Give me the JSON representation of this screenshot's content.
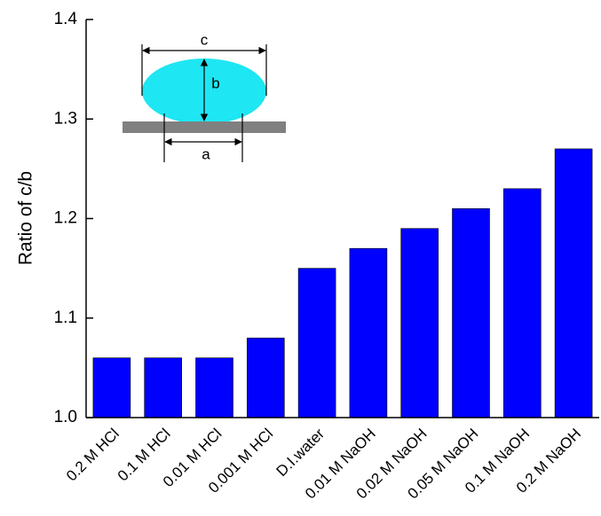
{
  "chart_data": {
    "type": "bar",
    "y_label": "Ratio of c/b",
    "categories": [
      "0.2 M HCl",
      "0.1 M HCl",
      "0.01 M HCl",
      "0.001 M HCl",
      "D.I.water",
      "0.01 M NaOH",
      "0.02 M NaOH",
      "0.05 M NaOH",
      "0.1 M NaOH",
      "0.2 M NaOH"
    ],
    "values": [
      1.06,
      1.06,
      1.06,
      1.08,
      1.15,
      1.17,
      1.19,
      1.21,
      1.23,
      1.27
    ],
    "color": "#0000ff",
    "ylim": [
      1.0,
      1.4
    ],
    "yticks": [
      {
        "value": 1.0,
        "label": "1.0"
      },
      1.1,
      1.2,
      1.3,
      1.4
    ],
    "annotations": [
      "c",
      "b",
      "a"
    ]
  }
}
